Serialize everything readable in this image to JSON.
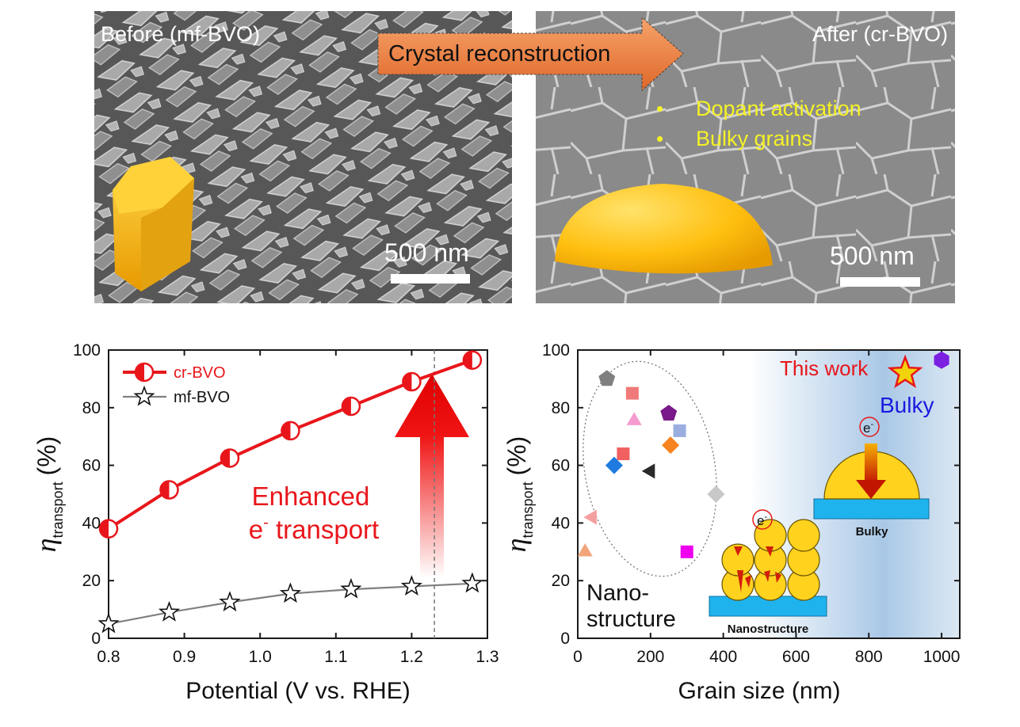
{
  "top": {
    "left_label": "Before (mf-BVO)",
    "right_label": "After (cr-BVO)",
    "arrow_label": "Crystal reconstruction",
    "bullets": [
      "Dopant activation",
      "Bulky grains"
    ],
    "scalebar_left": "500 nm",
    "scalebar_right": "500 nm"
  },
  "chart_data": [
    {
      "type": "line",
      "ylabel_symbol": "η",
      "ylabel_sub": "transport",
      "ylabel_unit": "(%)",
      "xlabel": "Potential (V vs. RHE)",
      "xlim": [
        0.8,
        1.3
      ],
      "ylim": [
        0,
        100
      ],
      "xticks": [
        "0.8",
        "0.9",
        "1.0",
        "1.1",
        "1.2",
        "1.3"
      ],
      "yticks": [
        "0",
        "20",
        "40",
        "60",
        "80",
        "100"
      ],
      "vline_x": 1.23,
      "annotation_line1": "Enhanced",
      "annotation_line2_pre": "e",
      "annotation_line2_sup": "-",
      "annotation_line2_post": " transport",
      "series": [
        {
          "name": "cr-BVO",
          "color": "#e8161b",
          "marker": "half-circle",
          "x": [
            0.8,
            0.88,
            0.96,
            1.04,
            1.12,
            1.2,
            1.28
          ],
          "y": [
            38,
            51.5,
            62.5,
            72,
            80.5,
            89,
            96.5
          ]
        },
        {
          "name": "mf-BVO",
          "color": "#808080",
          "marker": "star",
          "x": [
            0.8,
            0.88,
            0.96,
            1.04,
            1.12,
            1.2,
            1.28
          ],
          "y": [
            5,
            9,
            12.5,
            15.5,
            17,
            18,
            19
          ]
        }
      ]
    },
    {
      "type": "scatter",
      "ylabel_symbol": "η",
      "ylabel_sub": "transport",
      "ylabel_unit": "(%)",
      "xlabel": "Grain size (nm)",
      "xlim": [
        0,
        1050
      ],
      "ylim": [
        0,
        100
      ],
      "xticks": [
        "0",
        "200",
        "400",
        "600",
        "800",
        "1000"
      ],
      "yticks": [
        "0",
        "20",
        "40",
        "60",
        "80",
        "100"
      ],
      "label_this_work": "This work",
      "label_bulky": "Bulky",
      "label_nano_1": "Nano-",
      "label_nano_2": "structure",
      "inset_nano_label": "Nanostructure",
      "inset_bulky_label": "Bulky",
      "electron_label": "e",
      "electron_sup": "-",
      "points": [
        {
          "x": 80,
          "y": 90,
          "shape": "pentagon",
          "color": "#7f7f7f"
        },
        {
          "x": 150,
          "y": 85,
          "shape": "square",
          "color": "#f07a7a"
        },
        {
          "x": 155,
          "y": 76,
          "shape": "triangle",
          "color": "#f59bd0"
        },
        {
          "x": 250,
          "y": 78,
          "shape": "pentagon",
          "color": "#7a1a8a"
        },
        {
          "x": 280,
          "y": 72,
          "shape": "square",
          "color": "#9aaee0"
        },
        {
          "x": 125,
          "y": 64,
          "shape": "square",
          "color": "#f06060"
        },
        {
          "x": 255,
          "y": 67,
          "shape": "diamond",
          "color": "#f5831f"
        },
        {
          "x": 100,
          "y": 60,
          "shape": "diamond",
          "color": "#1f7be0"
        },
        {
          "x": 200,
          "y": 58,
          "shape": "triangle-left",
          "color": "#2a2a2a"
        },
        {
          "x": 380,
          "y": 50,
          "shape": "diamond",
          "color": "#c8c8c8"
        },
        {
          "x": 40,
          "y": 42,
          "shape": "triangle-left",
          "color": "#f5a0a0"
        },
        {
          "x": 20,
          "y": 30.5,
          "shape": "triangle",
          "color": "#f2a47a"
        },
        {
          "x": 300,
          "y": 30,
          "shape": "square",
          "color": "#ee00ee"
        },
        {
          "x": 1000,
          "y": 96.5,
          "shape": "hexagon",
          "color": "#7b1fe0"
        },
        {
          "x": 900,
          "y": 92,
          "shape": "star",
          "color": "#f2d20b"
        }
      ]
    }
  ]
}
